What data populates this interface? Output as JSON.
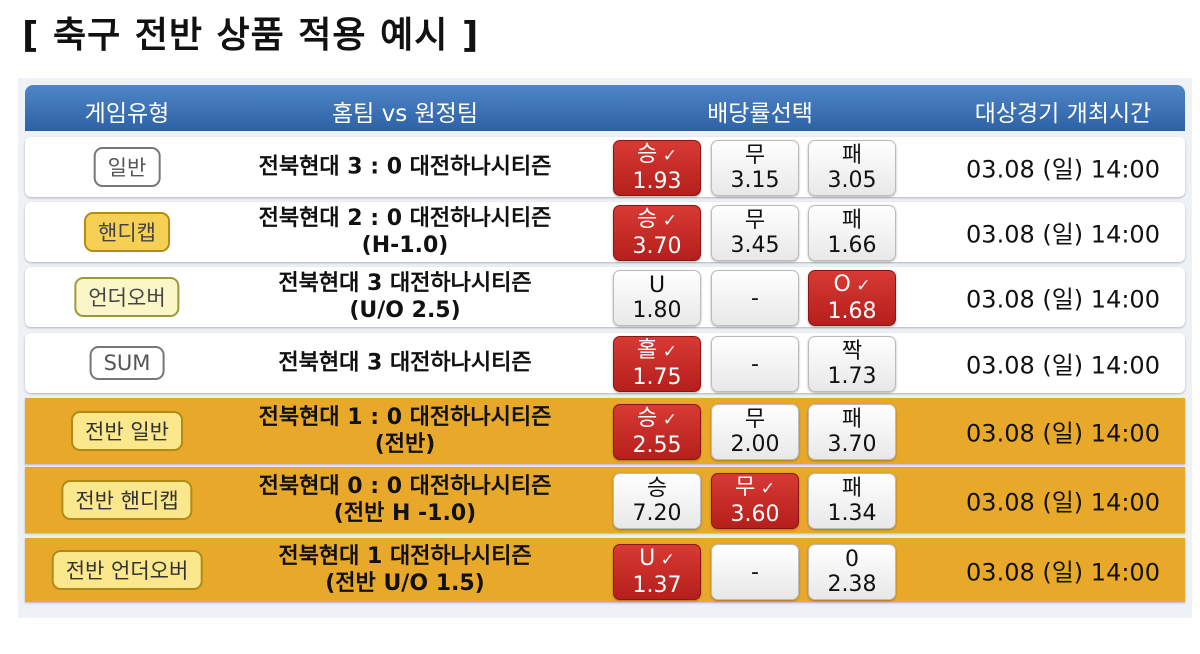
{
  "title": "[ 축구 전반 상품 적용 예시 ]",
  "header": {
    "game_type": "게임유형",
    "teams": "홈팀 vs 원정팀",
    "odds": "배당률선택",
    "time": "대상경기 개최시간"
  },
  "colors": {
    "header": "#3a72b6",
    "selected": "#c92a26",
    "first_half_row": "#e8a92a"
  },
  "rows": [
    {
      "type": "일반",
      "style": "plain",
      "bg": "white",
      "match": [
        "전북현대 3 : 0 대전하나시티즌"
      ],
      "odds": [
        {
          "label": "승",
          "value": "1.93",
          "selected": true
        },
        {
          "label": "무",
          "value": "3.15"
        },
        {
          "label": "패",
          "value": "3.05"
        }
      ],
      "time": "03.08 (일) 14:00"
    },
    {
      "type": "핸디캡",
      "style": "gold",
      "bg": "white",
      "match": [
        "전북현대 2 : 0 대전하나시티즌",
        "(H-1.0)"
      ],
      "odds": [
        {
          "label": "승",
          "value": "3.70",
          "selected": true
        },
        {
          "label": "무",
          "value": "3.45"
        },
        {
          "label": "패",
          "value": "1.66"
        }
      ],
      "time": "03.08 (일) 14:00"
    },
    {
      "type": "언더오버",
      "style": "lime",
      "bg": "white",
      "match": [
        "전북현대 3 대전하나시티즌",
        "(U/O 2.5)"
      ],
      "odds": [
        {
          "label": "U",
          "value": "1.80"
        },
        {
          "label": "-",
          "value": ""
        },
        {
          "label": "O",
          "value": "1.68",
          "selected": true
        }
      ],
      "time": "03.08 (일) 14:00"
    },
    {
      "type": "SUM",
      "style": "plain",
      "bg": "white",
      "match": [
        "전북현대 3 대전하나시티즌"
      ],
      "odds": [
        {
          "label": "홀",
          "value": "1.75",
          "selected": true
        },
        {
          "label": "-",
          "value": ""
        },
        {
          "label": "짝",
          "value": "1.73"
        }
      ],
      "time": "03.08 (일) 14:00"
    },
    {
      "type": "전반 일반",
      "style": "half",
      "bg": "orange",
      "match": [
        "전북현대 1 : 0 대전하나시티즌",
        "(전반)"
      ],
      "odds": [
        {
          "label": "승",
          "value": "2.55",
          "selected": true
        },
        {
          "label": "무",
          "value": "2.00"
        },
        {
          "label": "패",
          "value": "3.70"
        }
      ],
      "time": "03.08 (일) 14:00"
    },
    {
      "type": "전반 핸디캡",
      "style": "half",
      "bg": "orange",
      "match": [
        "전북현대 0 : 0 대전하나시티즌",
        "(전반 H -1.0)"
      ],
      "odds": [
        {
          "label": "승",
          "value": "7.20"
        },
        {
          "label": "무",
          "value": "3.60",
          "selected": true
        },
        {
          "label": "패",
          "value": "1.34"
        }
      ],
      "time": "03.08 (일) 14:00"
    },
    {
      "type": "전반 언더오버",
      "style": "half",
      "bg": "orange",
      "match": [
        "전북현대 1 대전하나시티즌",
        "(전반 U/O 1.5)"
      ],
      "odds": [
        {
          "label": "U",
          "value": "1.37",
          "selected": true
        },
        {
          "label": "-",
          "value": ""
        },
        {
          "label": "0",
          "value": "2.38"
        }
      ],
      "time": "03.08 (일) 14:00"
    }
  ]
}
